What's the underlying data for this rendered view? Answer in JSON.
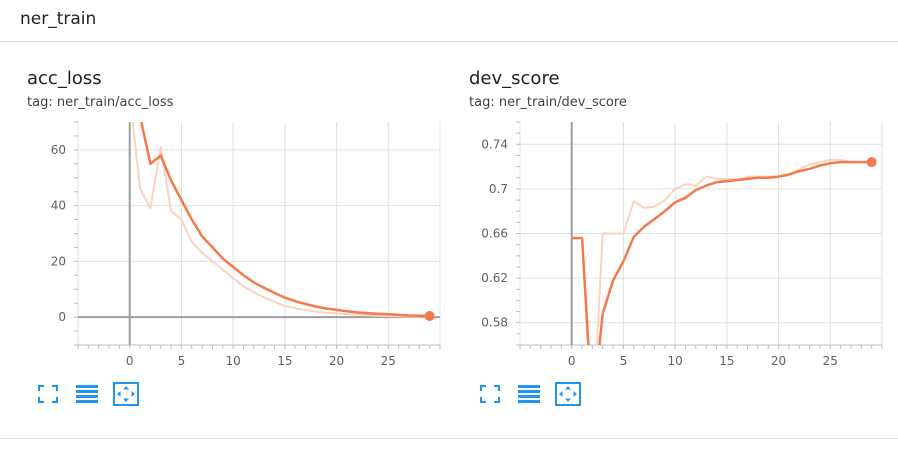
{
  "section": {
    "title": "ner_train"
  },
  "colors": {
    "accent": "#f27a4b",
    "raw": "#fcd2c1",
    "icon": "#2196f3",
    "grid": "#e0e0e0",
    "axis": "#9e9e9e"
  },
  "toolbar_icons": [
    "fullscreen-icon",
    "list-icon",
    "fit-domain-icon"
  ],
  "chart_data": [
    {
      "type": "line",
      "title": "acc_loss",
      "tag": "tag: ner_train/acc_loss",
      "xlim": [
        -5,
        30
      ],
      "ylim": [
        -10,
        70
      ],
      "xticks": [
        0,
        5,
        10,
        15,
        20,
        25
      ],
      "yticks": [
        0,
        20,
        40,
        60
      ],
      "grid": true,
      "series": [
        {
          "style": "raw",
          "x": [
            0,
            1,
            2,
            3,
            4,
            5,
            6,
            7,
            8,
            9,
            10,
            11,
            12,
            13,
            14,
            15,
            16,
            17,
            18,
            19,
            20,
            21,
            22,
            23,
            24,
            25,
            26,
            27,
            28,
            29
          ],
          "values": [
            80,
            46,
            39,
            61,
            38,
            35,
            27,
            23,
            20,
            17,
            14,
            11,
            9,
            7,
            5.5,
            4,
            3.2,
            2.6,
            2,
            1.6,
            1.3,
            1.1,
            0.9,
            0.7,
            0.5,
            0.4,
            0.3,
            0.2,
            0.2,
            0.2
          ]
        },
        {
          "style": "smoothed",
          "x": [
            0,
            1,
            2,
            3,
            4,
            5,
            6,
            7,
            8,
            9,
            10,
            11,
            12,
            13,
            14,
            15,
            16,
            17,
            18,
            19,
            20,
            21,
            22,
            23,
            24,
            25,
            26,
            27,
            28,
            29
          ],
          "values": [
            80,
            72,
            55,
            58,
            49,
            42,
            35,
            29,
            25,
            21,
            18,
            15,
            12.5,
            10.5,
            8.7,
            7,
            5.7,
            4.7,
            3.8,
            3.1,
            2.6,
            2.1,
            1.7,
            1.4,
            1.2,
            1,
            0.8,
            0.6,
            0.5,
            0.4
          ]
        }
      ]
    },
    {
      "type": "line",
      "title": "dev_score",
      "tag": "tag: ner_train/dev_score",
      "xlim": [
        -5,
        30
      ],
      "ylim": [
        0.56,
        0.76
      ],
      "xticks": [
        0,
        5,
        10,
        15,
        20,
        25
      ],
      "yticks": [
        0.58,
        0.62,
        0.66,
        0.7,
        0.74
      ],
      "ytick_labels": [
        "0.58",
        "0.62",
        "0.66",
        "0.7",
        "0.74"
      ],
      "grid": true,
      "series": [
        {
          "style": "raw",
          "x": [
            0,
            1,
            2,
            3,
            4,
            5,
            6,
            7,
            8,
            9,
            10,
            11,
            12,
            13,
            14,
            15,
            16,
            17,
            18,
            19,
            20,
            21,
            22,
            23,
            24,
            25,
            26,
            27,
            28,
            29
          ],
          "values": [
            0.656,
            0.656,
            0.48,
            0.66,
            0.66,
            0.66,
            0.689,
            0.683,
            0.684,
            0.69,
            0.7,
            0.704,
            0.703,
            0.711,
            0.709,
            0.709,
            0.708,
            0.711,
            0.711,
            0.711,
            0.711,
            0.712,
            0.718,
            0.722,
            0.724,
            0.726,
            0.726,
            0.724,
            0.724,
            0.724
          ]
        },
        {
          "style": "smoothed",
          "x": [
            0,
            1,
            2,
            3,
            4,
            5,
            6,
            7,
            8,
            9,
            10,
            11,
            12,
            13,
            14,
            15,
            16,
            17,
            18,
            19,
            20,
            21,
            22,
            23,
            24,
            25,
            26,
            27,
            28,
            29
          ],
          "values": [
            0.656,
            0.656,
            0.5,
            0.588,
            0.618,
            0.635,
            0.657,
            0.666,
            0.673,
            0.68,
            0.688,
            0.692,
            0.699,
            0.703,
            0.706,
            0.707,
            0.708,
            0.709,
            0.71,
            0.71,
            0.711,
            0.713,
            0.716,
            0.718,
            0.721,
            0.723,
            0.724,
            0.724,
            0.724,
            0.724
          ]
        }
      ]
    }
  ]
}
